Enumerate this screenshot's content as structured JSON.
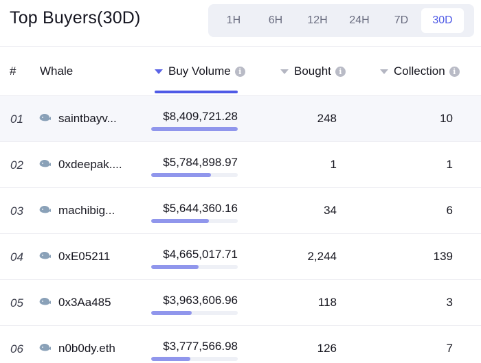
{
  "header": {
    "title": "Top Buyers(30D)"
  },
  "timeframes": [
    {
      "label": "1H",
      "active": false
    },
    {
      "label": "6H",
      "active": false
    },
    {
      "label": "12H",
      "active": false
    },
    {
      "label": "24H",
      "active": false
    },
    {
      "label": "7D",
      "active": false
    },
    {
      "label": "30D",
      "active": true
    }
  ],
  "columns": {
    "rank": "#",
    "whale": "Whale",
    "buy_volume": "Buy Volume",
    "bought": "Bought",
    "collection": "Collection"
  },
  "colors": {
    "accent": "#4f5ae6",
    "bar_fill": "#9096ec",
    "whale_icon": "#8aa1b8"
  },
  "rows": [
    {
      "rank": "01",
      "whale": "saintbayv...",
      "buy_volume": "$8,409,721.28",
      "volume_share": 1.0,
      "bought": "248",
      "collection": "10"
    },
    {
      "rank": "02",
      "whale": "0xdeepak....",
      "buy_volume": "$5,784,898.97",
      "volume_share": 0.69,
      "bought": "1",
      "collection": "1"
    },
    {
      "rank": "03",
      "whale": "machibig...",
      "buy_volume": "$5,644,360.16",
      "volume_share": 0.67,
      "bought": "34",
      "collection": "6"
    },
    {
      "rank": "04",
      "whale": "0xE05211",
      "buy_volume": "$4,665,017.71",
      "volume_share": 0.55,
      "bought": "2,244",
      "collection": "139"
    },
    {
      "rank": "05",
      "whale": "0x3Aa485",
      "buy_volume": "$3,963,606.96",
      "volume_share": 0.47,
      "bought": "118",
      "collection": "3"
    },
    {
      "rank": "06",
      "whale": "n0b0dy.eth",
      "buy_volume": "$3,777,566.98",
      "volume_share": 0.45,
      "bought": "126",
      "collection": "7"
    }
  ]
}
